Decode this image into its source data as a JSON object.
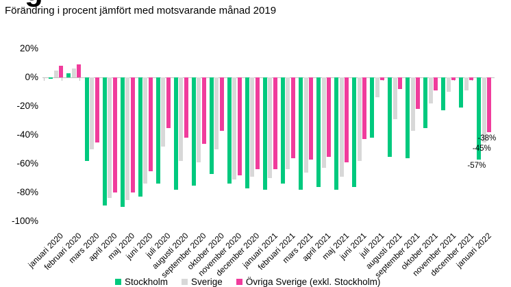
{
  "header": {
    "clipped_title_fragment": "g",
    "subtitle": "Förändring i procent jämfört med motsvarande månad 2019"
  },
  "chart_data": {
    "type": "bar",
    "title": "",
    "subtitle": "Förändring i procent jämfört med motsvarande månad 2019",
    "grid": false,
    "legend_position": "bottom",
    "ylim": [
      -100,
      20
    ],
    "yticks": [
      {
        "value": 20,
        "label": "20%"
      },
      {
        "value": 0,
        "label": "0%"
      },
      {
        "value": -20,
        "label": "-20%"
      },
      {
        "value": -40,
        "label": "-40%"
      },
      {
        "value": -60,
        "label": "-60%"
      },
      {
        "value": -80,
        "label": "-80%"
      },
      {
        "value": -100,
        "label": "-100%"
      }
    ],
    "categories": [
      "januari 2020",
      "februari 2020",
      "mars 2020",
      "april 2020",
      "maj 2020",
      "juni 2020",
      "juli 2020",
      "augusti 2020",
      "september 2020",
      "oktober 2020",
      "november 2020",
      "december 2020",
      "januari 2021",
      "februari 2021",
      "mars 2021",
      "april 2021",
      "maj 2021",
      "juni 2021",
      "juli 2021",
      "augusti 2021",
      "september 2021",
      "oktober 2021",
      "november 2021",
      "december 2021",
      "januari 2022"
    ],
    "series": [
      {
        "name": "Stockholm",
        "color": "#00c97e",
        "values": [
          -1,
          3,
          -58,
          -89,
          -90,
          -83,
          -74,
          -78,
          -75,
          -67,
          -74,
          -77,
          -78,
          -74,
          -78,
          -76,
          -78,
          -76,
          -42,
          -55,
          -56,
          -35,
          -23,
          -21,
          -57
        ]
      },
      {
        "name": "Sverige",
        "color": "#d8d8d8",
        "values": [
          5,
          6,
          -50,
          -84,
          -85,
          -74,
          -48,
          -58,
          -59,
          -50,
          -71,
          -69,
          -70,
          -64,
          -66,
          -63,
          -69,
          -58,
          -14,
          -29,
          -37,
          -18,
          -10,
          -9,
          -45
        ]
      },
      {
        "name": "Övriga Sverige (exkl. Stockholm)",
        "color": "#f03c9c",
        "values": [
          8,
          9,
          -45,
          -80,
          -80,
          -65,
          -35,
          -42,
          -46,
          -37,
          -68,
          -64,
          -64,
          -56,
          -57,
          -55,
          -59,
          -43,
          -2,
          -8,
          -22,
          -9,
          -2,
          -2,
          -38
        ]
      }
    ],
    "annotations": [
      {
        "text": "-38%",
        "series": "Övriga Sverige (exkl. Stockholm)",
        "category": "januari 2022"
      },
      {
        "text": "-45%",
        "series": "Sverige",
        "category": "januari 2022"
      },
      {
        "text": "-57%",
        "series": "Stockholm",
        "category": "januari 2022"
      }
    ]
  }
}
